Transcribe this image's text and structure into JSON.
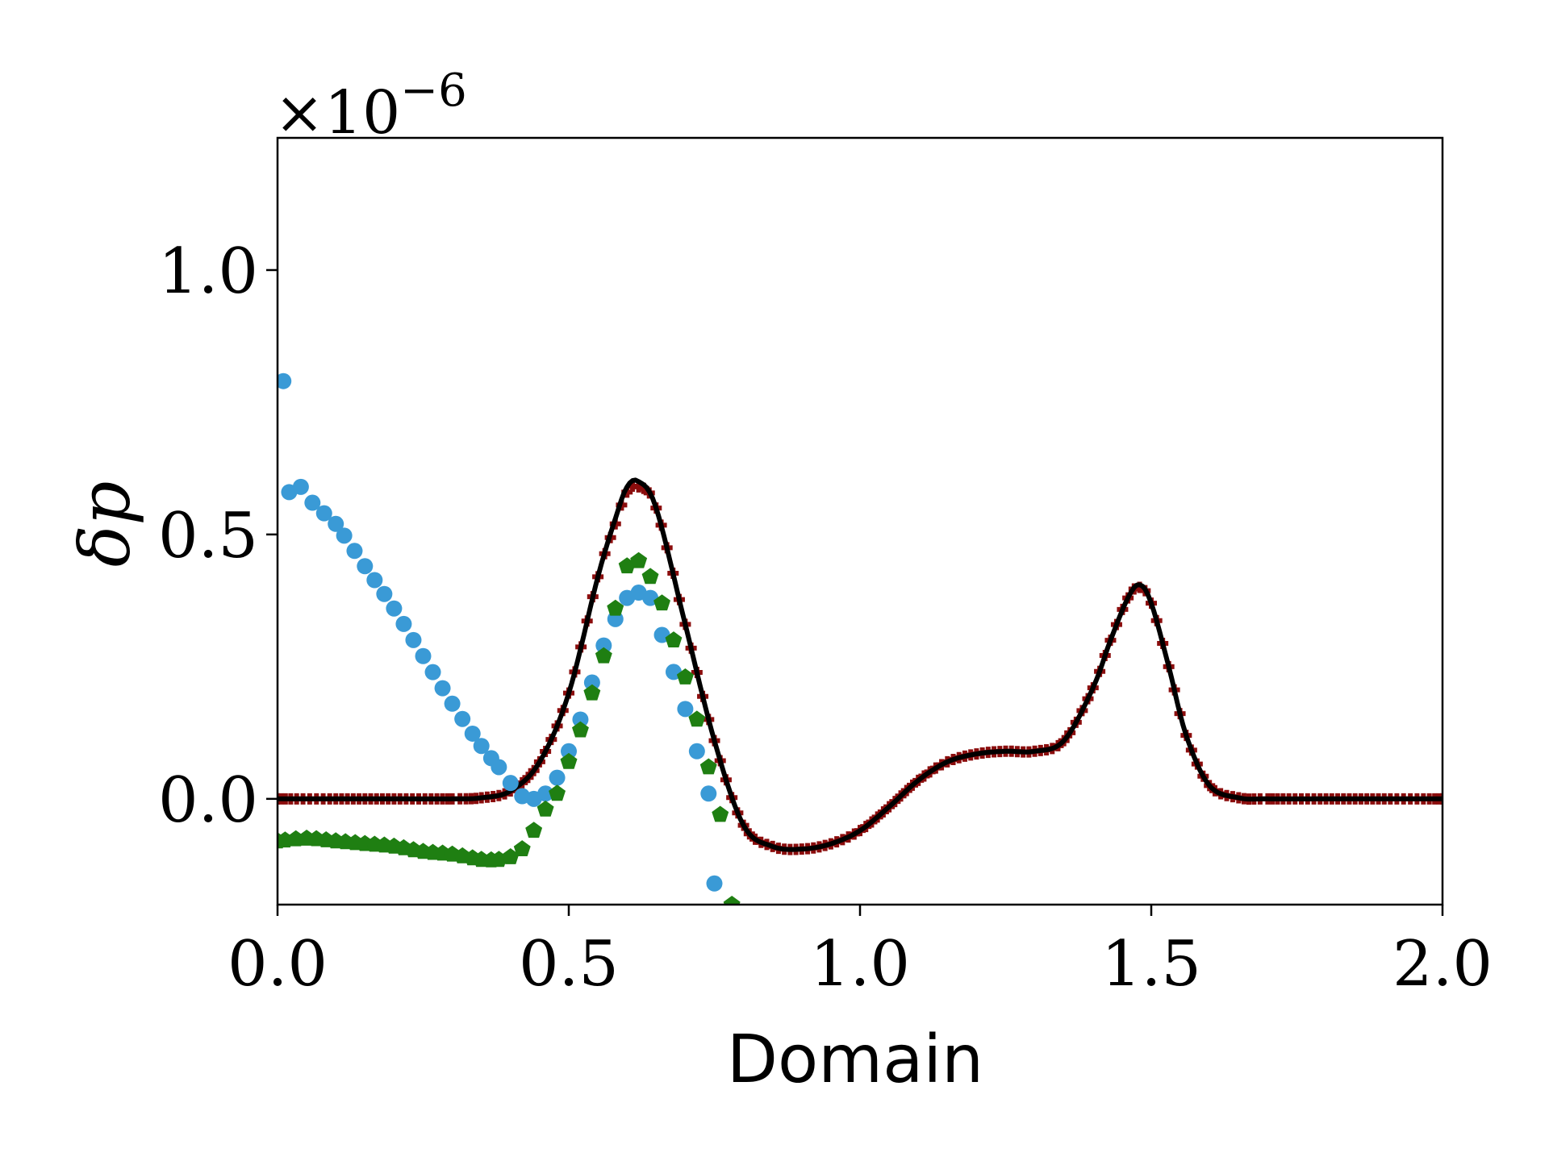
{
  "chart_data": {
    "type": "line",
    "title": "",
    "xlabel": "Domain",
    "ylabel": "δp",
    "y_offset_label": "×10",
    "y_offset_exponent": "−6",
    "xlim": [
      0.0,
      2.0
    ],
    "ylim": [
      -0.2,
      1.25
    ],
    "xticks": [
      0.0,
      0.5,
      1.0,
      1.5,
      2.0
    ],
    "xtick_labels": [
      "0.0",
      "0.5",
      "1.0",
      "1.5",
      "2.0"
    ],
    "yticks": [
      0.0,
      0.5,
      1.0
    ],
    "ytick_labels": [
      "0.0",
      "0.5",
      "1.0"
    ],
    "grid": false,
    "legend": "none",
    "series": [
      {
        "marker": "solid-line",
        "color": "#000000",
        "x": [
          0.0,
          0.1,
          0.2,
          0.3,
          0.35,
          0.4,
          0.45,
          0.5,
          0.55,
          0.58,
          0.6,
          0.62,
          0.65,
          0.7,
          0.75,
          0.8,
          0.85,
          0.9,
          0.95,
          1.0,
          1.05,
          1.1,
          1.15,
          1.2,
          1.25,
          1.3,
          1.35,
          1.4,
          1.43,
          1.46,
          1.48,
          1.5,
          1.53,
          1.56,
          1.6,
          1.65,
          1.7,
          1.8,
          1.9,
          2.0
        ],
        "y": [
          0.0,
          0.0,
          0.0,
          0.0,
          0.002,
          0.015,
          0.07,
          0.2,
          0.42,
          0.53,
          0.59,
          0.6,
          0.55,
          0.33,
          0.11,
          -0.05,
          -0.09,
          -0.095,
          -0.085,
          -0.06,
          -0.015,
          0.035,
          0.07,
          0.085,
          0.09,
          0.09,
          0.11,
          0.21,
          0.3,
          0.38,
          0.405,
          0.37,
          0.25,
          0.12,
          0.025,
          0.002,
          0.0,
          0.0,
          0.0,
          0.0
        ]
      },
      {
        "marker": "plus-square",
        "color": "#8b0d0d",
        "x": [
          0.0,
          0.1,
          0.2,
          0.3,
          0.35,
          0.4,
          0.45,
          0.5,
          0.55,
          0.58,
          0.6,
          0.62,
          0.65,
          0.7,
          0.75,
          0.8,
          0.85,
          0.9,
          0.95,
          1.0,
          1.05,
          1.1,
          1.15,
          1.2,
          1.25,
          1.3,
          1.35,
          1.4,
          1.43,
          1.46,
          1.48,
          1.5,
          1.53,
          1.56,
          1.6,
          1.65,
          1.7,
          1.8,
          1.9,
          2.0
        ],
        "y": [
          0.0,
          0.0,
          0.0,
          0.0,
          0.002,
          0.015,
          0.07,
          0.2,
          0.42,
          0.52,
          0.58,
          0.59,
          0.55,
          0.33,
          0.11,
          -0.05,
          -0.09,
          -0.095,
          -0.085,
          -0.06,
          -0.015,
          0.035,
          0.07,
          0.085,
          0.09,
          0.09,
          0.11,
          0.21,
          0.3,
          0.38,
          0.4,
          0.37,
          0.25,
          0.12,
          0.025,
          0.002,
          0.0,
          0.0,
          0.0,
          0.0
        ]
      },
      {
        "marker": "circle",
        "color": "#3a9ad6",
        "x": [
          0.01,
          0.02,
          0.04,
          0.06,
          0.08,
          0.1,
          0.15,
          0.2,
          0.25,
          0.3,
          0.35,
          0.38,
          0.4,
          0.42,
          0.44,
          0.46,
          0.48,
          0.5,
          0.52,
          0.54,
          0.56,
          0.58,
          0.6,
          0.62,
          0.64,
          0.66,
          0.68,
          0.7,
          0.72,
          0.74,
          0.75
        ],
        "y": [
          0.79,
          0.58,
          0.59,
          0.56,
          0.54,
          0.52,
          0.44,
          0.36,
          0.27,
          0.18,
          0.1,
          0.06,
          0.03,
          0.005,
          0.0,
          0.01,
          0.04,
          0.09,
          0.15,
          0.22,
          0.29,
          0.34,
          0.38,
          0.39,
          0.38,
          0.31,
          0.24,
          0.17,
          0.09,
          0.01,
          -0.16
        ]
      },
      {
        "marker": "pentagon",
        "color": "#1f7f12",
        "x": [
          0.0,
          0.05,
          0.1,
          0.15,
          0.2,
          0.25,
          0.3,
          0.35,
          0.38,
          0.4,
          0.42,
          0.44,
          0.46,
          0.48,
          0.5,
          0.52,
          0.54,
          0.56,
          0.58,
          0.6,
          0.62,
          0.64,
          0.66,
          0.68,
          0.7,
          0.72,
          0.74,
          0.76,
          0.78
        ],
        "y": [
          -0.08,
          -0.075,
          -0.08,
          -0.085,
          -0.09,
          -0.1,
          -0.105,
          -0.115,
          -0.115,
          -0.11,
          -0.095,
          -0.06,
          -0.02,
          0.01,
          0.07,
          0.13,
          0.2,
          0.27,
          0.36,
          0.44,
          0.45,
          0.42,
          0.37,
          0.3,
          0.23,
          0.15,
          0.06,
          -0.03,
          -0.2
        ]
      }
    ]
  }
}
